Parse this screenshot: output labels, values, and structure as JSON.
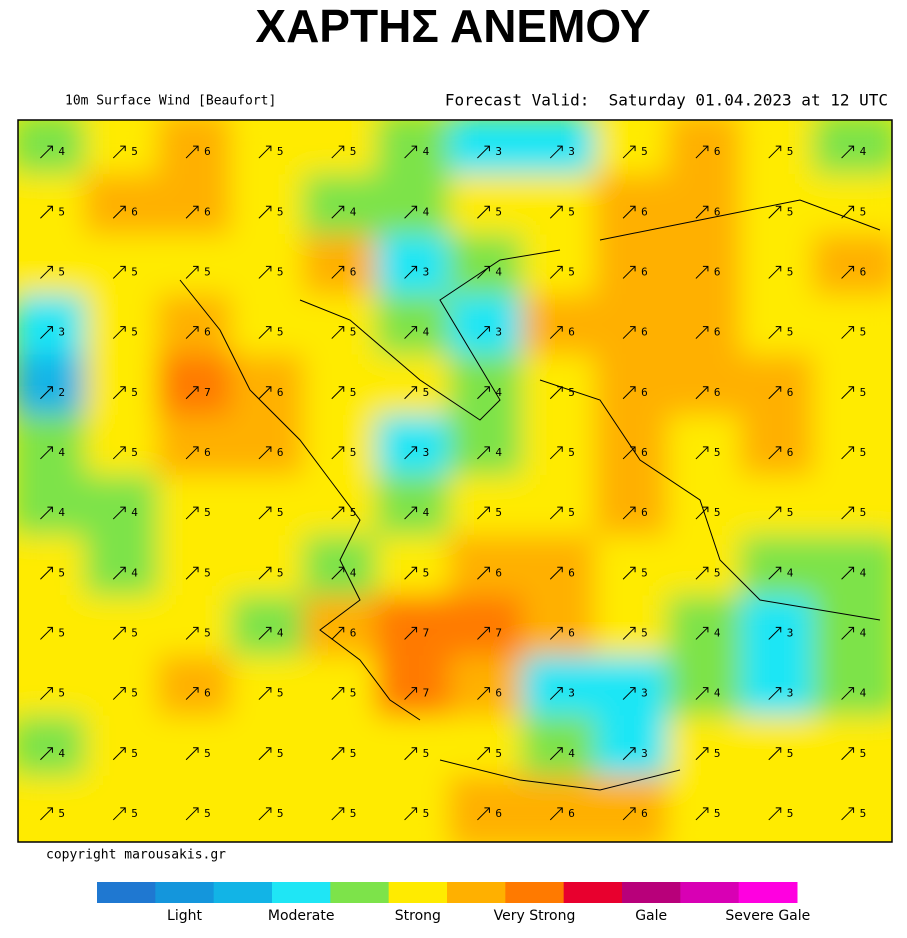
{
  "title": "ΧΑΡΤΗΣ ΑΝΕΜΟΥ",
  "header": {
    "left": "10m Surface Wind [Beaufort]",
    "right": "Forecast Valid:  Saturday 01.04.2023 at 12 UTC"
  },
  "map": {
    "wind_beaufort": [
      [
        4,
        5,
        6,
        5,
        5,
        4,
        3,
        3,
        5,
        6,
        5,
        4
      ],
      [
        5,
        6,
        6,
        5,
        4,
        4,
        5,
        5,
        6,
        6,
        5,
        5
      ],
      [
        5,
        5,
        5,
        5,
        6,
        3,
        4,
        5,
        6,
        6,
        5,
        6
      ],
      [
        3,
        5,
        6,
        5,
        5,
        4,
        3,
        6,
        6,
        6,
        5,
        5
      ],
      [
        2,
        5,
        7,
        6,
        5,
        5,
        4,
        5,
        6,
        6,
        6,
        5
      ],
      [
        4,
        5,
        6,
        6,
        5,
        3,
        4,
        5,
        6,
        5,
        6,
        5
      ],
      [
        4,
        4,
        5,
        5,
        5,
        4,
        5,
        5,
        6,
        5,
        5,
        5
      ],
      [
        5,
        4,
        5,
        5,
        4,
        5,
        6,
        6,
        5,
        5,
        4,
        4
      ],
      [
        5,
        5,
        5,
        4,
        6,
        7,
        7,
        6,
        5,
        4,
        3,
        4
      ],
      [
        5,
        5,
        6,
        5,
        5,
        7,
        6,
        3,
        3,
        4,
        3,
        4
      ],
      [
        4,
        5,
        5,
        5,
        5,
        5,
        5,
        4,
        3,
        5,
        5,
        5
      ],
      [
        5,
        5,
        5,
        5,
        5,
        5,
        6,
        6,
        6,
        5,
        5,
        5
      ]
    ]
  },
  "copyright": "copyright marousakis.gr",
  "legend": {
    "colors": [
      "#1f78d1",
      "#1496dc",
      "#12b4e6",
      "#1fe6f5",
      "#7de34a",
      "#ffeb00",
      "#ffb000",
      "#ff7a00",
      "#e8002e",
      "#b8007a",
      "#d800b4",
      "#ff00e0"
    ],
    "labels": [
      "Light",
      "Moderate",
      "Strong",
      "Very Strong",
      "Gale",
      "Severe Gale"
    ]
  }
}
